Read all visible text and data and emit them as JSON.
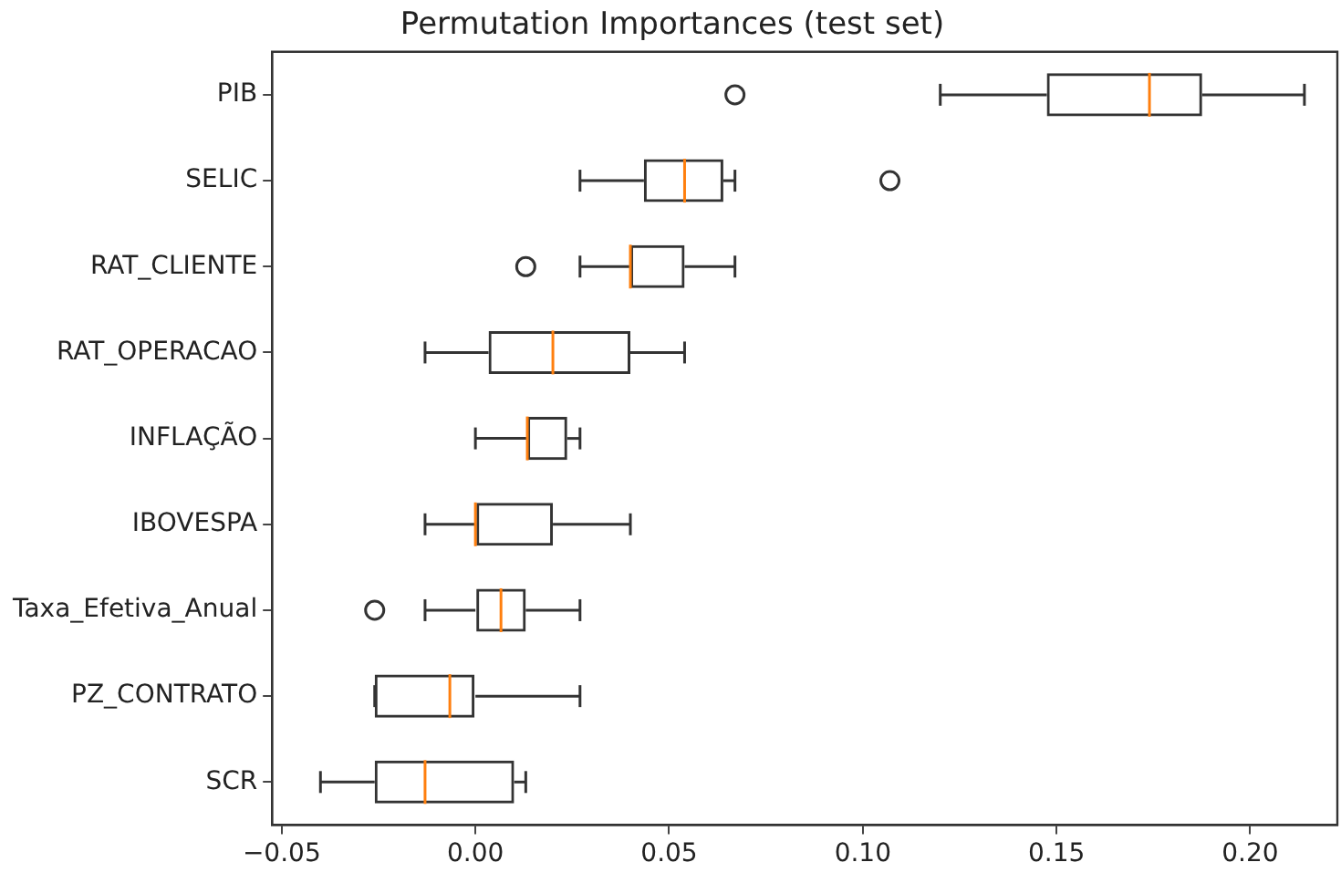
{
  "chart_data": {
    "type": "box",
    "orientation": "horizontal",
    "title": "Permutation Importances (test set)",
    "color": "#333333",
    "grid": false,
    "legend": false,
    "categories": [
      "PIB",
      "SELIC",
      "RAT_CLIENTE",
      "RAT_OPERACAO",
      "INFLAÇÃO",
      "IBOVESPA",
      "Taxa_Efetiva_Anual",
      "PZ_CONTRATO",
      "SCR"
    ],
    "boxes": [
      {
        "low": 0.12,
        "q1": 0.1475,
        "median": 0.174,
        "q3": 0.1876,
        "high": 0.214,
        "outliers": [
          0.067
        ]
      },
      {
        "low": 0.027,
        "q1": 0.0435,
        "median": 0.054,
        "q3": 0.064,
        "high": 0.067,
        "outliers": [
          0.107
        ]
      },
      {
        "low": 0.027,
        "q1": 0.04,
        "median": 0.04,
        "q3": 0.054,
        "high": 0.067,
        "outliers": [
          0.013
        ]
      },
      {
        "low": -0.013,
        "q1": 0.0034,
        "median": 0.02,
        "q3": 0.04,
        "high": 0.054
      },
      {
        "low": 0,
        "q1": 0.0134,
        "median": 0.0134,
        "q3": 0.0237,
        "high": 0.027
      },
      {
        "low": -0.013,
        "q1": 0,
        "median": 0,
        "q3": 0.02,
        "high": 0.04
      },
      {
        "low": -0.013,
        "q1": 0,
        "median": 0.0066,
        "q3": 0.013,
        "high": 0.027,
        "outliers": [
          -0.026
        ]
      },
      {
        "low": -0.026,
        "q1": -0.026,
        "median": -0.0066,
        "q3": 0,
        "high": 0.027
      },
      {
        "low": -0.04,
        "q1": -0.026,
        "median": -0.013,
        "q3": 0.01,
        "high": 0.013
      }
    ],
    "xlim": [
      -0.0525,
      0.2225
    ],
    "xticks": [
      {
        "value": -0.05,
        "label": "−0.05"
      },
      {
        "value": 0,
        "label": "0.00"
      },
      {
        "value": 0.05,
        "label": "0.05"
      },
      {
        "value": 0.1,
        "label": "0.10"
      },
      {
        "value": 0.15,
        "label": "0.15"
      },
      {
        "value": 0.2,
        "label": "0.20"
      }
    ]
  }
}
